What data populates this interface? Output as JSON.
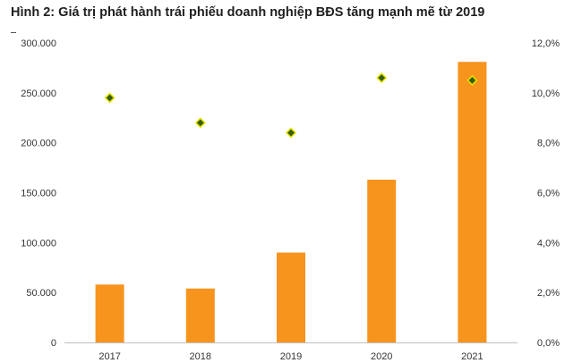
{
  "title": "Hình 2: Giá trị phát hành trái phiếu doanh nghiệp BĐS tăng mạnh mẽ từ 2019",
  "colors": {
    "bar": "#F7941D",
    "marker": "#3A5F0B",
    "marker_outline": "#E5E500",
    "axis": "#BFBFBF",
    "text": "#333333"
  },
  "chart_data": {
    "type": "bar",
    "categories": [
      "2017",
      "2018",
      "2019",
      "2020",
      "2021"
    ],
    "series": [
      {
        "type": "bar",
        "axis": "left",
        "values": [
          58000,
          54000,
          90000,
          163000,
          281000
        ]
      },
      {
        "type": "scatter",
        "axis": "right",
        "values": [
          0.098,
          0.088,
          0.084,
          0.106,
          0.105
        ]
      }
    ],
    "y_left": {
      "ylim": [
        0,
        300000
      ],
      "ticks": [
        "0",
        "50.000",
        "100.000",
        "150.000",
        "200.000",
        "250.000",
        "300.000"
      ]
    },
    "y_right": {
      "ylim": [
        0,
        0.12
      ],
      "ticks": [
        "0,0%",
        "2,0%",
        "4,0%",
        "6,0%",
        "8,0%",
        "10,0%",
        "12,0%"
      ]
    },
    "grid": false,
    "legend": "none"
  }
}
